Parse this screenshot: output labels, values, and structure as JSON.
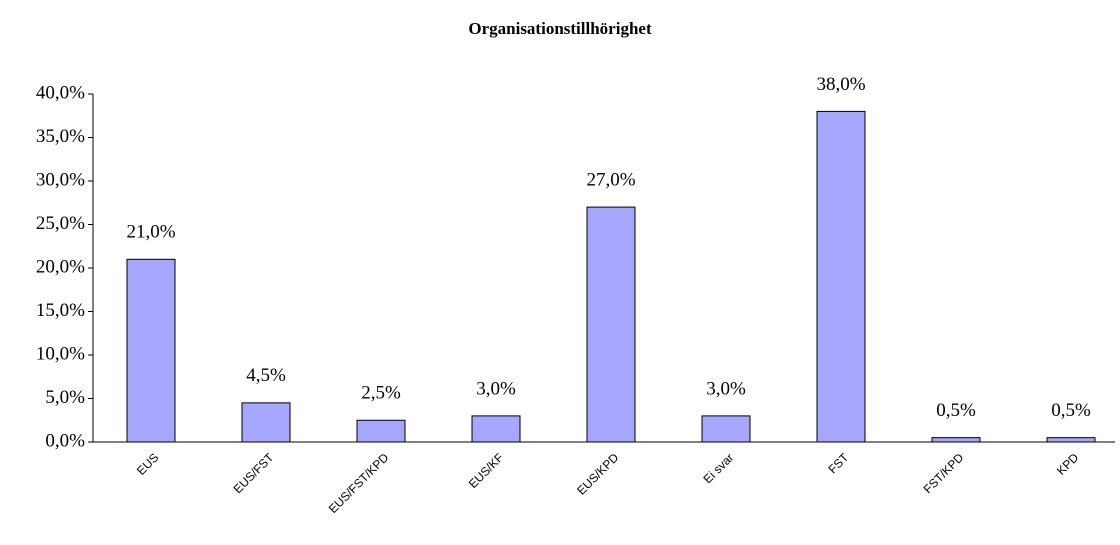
{
  "chart_data": {
    "type": "bar",
    "title": "Organisationstillhörighet",
    "categories": [
      "EUS",
      "EUS/FST",
      "EUS/FST/KPD",
      "EUS/KF",
      "EUS/KPD",
      "Ei svar",
      "FST",
      "FST/KPD",
      "KPD"
    ],
    "values": [
      21,
      4.5,
      2.5,
      3,
      27,
      3,
      38,
      0.5,
      0.5
    ],
    "value_labels": [
      "21,0%",
      "4,5%",
      "2,5%",
      "3,0%",
      "27,0%",
      "3,0%",
      "38,0%",
      "0,5%",
      "0,5%"
    ],
    "color": "#a6a6ff",
    "ylim": [
      0,
      40
    ],
    "yticks": [
      {
        "value": 0,
        "label": "0,0%"
      },
      {
        "value": 5,
        "label": "5,0%"
      },
      {
        "value": 10,
        "label": "10,0%"
      },
      {
        "value": 15,
        "label": "15,0%"
      },
      {
        "value": 20,
        "label": "20,0%"
      },
      {
        "value": 25,
        "label": "25,0%"
      },
      {
        "value": 30,
        "label": "30,0%"
      },
      {
        "value": 35,
        "label": "35,0%"
      },
      {
        "value": 40,
        "label": "40,0%"
      }
    ],
    "grid": false
  }
}
